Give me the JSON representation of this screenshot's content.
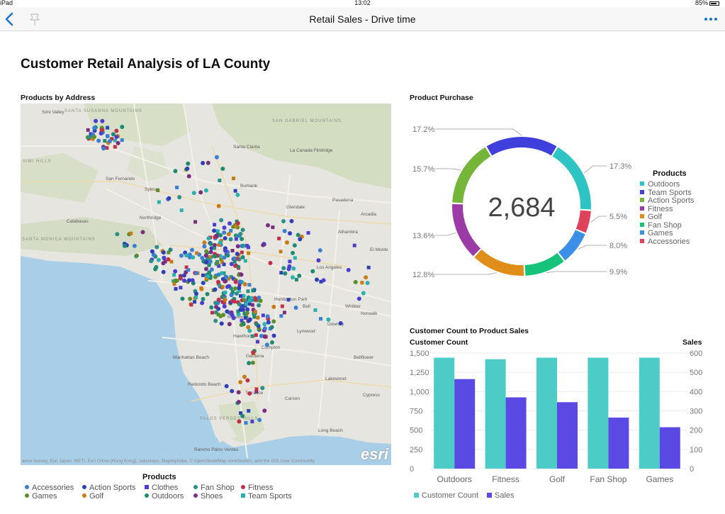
{
  "status_bar": {
    "device": "iPad",
    "time": "13:02",
    "battery": "85%"
  },
  "nav": {
    "title": "Retail Sales - Drive time",
    "back_icon": "chevron-left-icon",
    "pin_icon": "pushpin-icon",
    "more_icon": "ellipsis-icon"
  },
  "page": {
    "title": "Customer Retail Analysis of LA County"
  },
  "map_section": {
    "title": "Products by Address",
    "place_labels": [
      "Simi Valley",
      "SANTA SUSANNA MOUNTAINS",
      "SIMI HILLS",
      "SAN GABRIEL MOUNTAINS",
      "Glendale",
      "Burbank",
      "Pasadena",
      "SANTA MONICA MOUNTAINS",
      "Los Angeles",
      "El Monte",
      "Downey",
      "Inglewood",
      "Norwalk",
      "Manhattan Beach",
      "Redondo Beach",
      "Long Beach",
      "Torrance",
      "Carson",
      "Lakewood",
      "Cypress",
      "Bellflower",
      "Whittier",
      "Huntington Park",
      "Compton",
      "Alhambra",
      "La Canada Flintridge",
      "Santa Clarita",
      "Sylmar",
      "Northridge",
      "Calabasas",
      "San Fernando",
      "PALOS VERDES HILLS",
      "Rancho Palos Verdes",
      "Gardena",
      "Hawthorne",
      "Lynwood",
      "Bell",
      "Arcadia"
    ],
    "attribution": "ance Survey, Esri Japan, METI, Esri China (Hong Kong), swisstopo, MapmyIndia, © OpenStreetMap contributors, and the GIS User Community",
    "esri_logo": "esri",
    "legend_title": "Products",
    "legend": [
      {
        "label": "Accessories",
        "color": "#3b7fd4",
        "shape": "circle"
      },
      {
        "label": "Action Sports",
        "color": "#2f3fb8",
        "shape": "circle"
      },
      {
        "label": "Clothes",
        "color": "#4b3fd1",
        "shape": "square"
      },
      {
        "label": "Fan Shop",
        "color": "#2a8f86",
        "shape": "circle"
      },
      {
        "label": "Fitness",
        "color": "#c0304a",
        "shape": "circle"
      },
      {
        "label": "Games",
        "color": "#5b8f2e",
        "shape": "circle"
      },
      {
        "label": "Golf",
        "color": "#c77c14",
        "shape": "circle"
      },
      {
        "label": "Outdoors",
        "color": "#1f8a73",
        "shape": "circle"
      },
      {
        "label": "Shoes",
        "color": "#7a2f7e",
        "shape": "circle"
      },
      {
        "label": "Team Sports",
        "color": "#2bb0b0",
        "shape": "square"
      }
    ]
  },
  "donut_section": {
    "title": "Product Purchase",
    "center_value": "2,684",
    "legend_title": "Products",
    "segments": [
      {
        "label": "Outdoors",
        "pct": 17.3,
        "color": "#2ec4c4"
      },
      {
        "label": "Team Sports",
        "pct": 17.2,
        "color": "#3f3fdc"
      },
      {
        "label": "Action Sports",
        "pct": 15.7,
        "color": "#74b53a"
      },
      {
        "label": "Fitness",
        "pct": 13.6,
        "color": "#9b3ca6"
      },
      {
        "label": "Golf",
        "pct": 12.8,
        "color": "#e08e1a"
      },
      {
        "label": "Fan Shop",
        "pct": 9.9,
        "color": "#17c37a"
      },
      {
        "label": "Games",
        "pct": 8.0,
        "color": "#3b8fe6"
      },
      {
        "label": "Accessories",
        "pct": 5.5,
        "color": "#e0425b"
      }
    ],
    "pct_labels": [
      "17.2%",
      "15.7%",
      "13.6%",
      "12.8%",
      "17.3%",
      "5.5%",
      "8.0%",
      "9.9%"
    ]
  },
  "bar_section": {
    "title": "Customer Count to Product Sales",
    "left_axis_title": "Customer Count",
    "right_axis_title": "Sales",
    "left_ticks": [
      "1,500",
      "1,250",
      "1,000",
      "750",
      "500",
      "250",
      "0"
    ],
    "right_ticks": [
      "600",
      "500",
      "400",
      "300",
      "200",
      "100",
      "0"
    ],
    "legend": [
      {
        "label": "Customer Count",
        "color": "#4ccbc7"
      },
      {
        "label": "Sales",
        "color": "#5a4ae3"
      }
    ]
  },
  "chart_data": [
    {
      "type": "pie",
      "title": "Product Purchase",
      "total": 2684,
      "categories": [
        "Outdoors",
        "Team Sports",
        "Action Sports",
        "Fitness",
        "Golf",
        "Fan Shop",
        "Games",
        "Accessories"
      ],
      "values": [
        17.3,
        17.2,
        15.7,
        13.6,
        12.8,
        9.9,
        8.0,
        5.5
      ],
      "legend_position": "right"
    },
    {
      "type": "bar",
      "title": "Customer Count to Product Sales",
      "categories": [
        "Outdoors",
        "Fitness",
        "Golf",
        "Fan Shop",
        "Games"
      ],
      "series": [
        {
          "name": "Customer Count",
          "axis": "left",
          "values": [
            1440,
            1420,
            1440,
            1440,
            1440
          ]
        },
        {
          "name": "Sales",
          "axis": "right",
          "values": [
            465,
            370,
            345,
            265,
            215
          ]
        }
      ],
      "ylabel": "Customer Count",
      "y2label": "Sales",
      "ylim": [
        0,
        1500
      ],
      "y2lim": [
        0,
        600
      ],
      "legend_position": "bottom-left"
    }
  ]
}
